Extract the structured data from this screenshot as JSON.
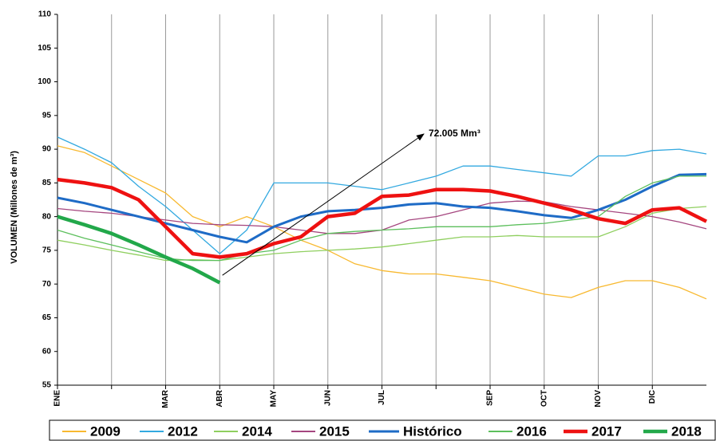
{
  "chart_data": {
    "type": "line",
    "y_label": "VOLUMEN (Millones de m³)",
    "annotation": "72.005 Mm³",
    "x": [
      0,
      0.5,
      1,
      1.5,
      2,
      2.5,
      3,
      3.5,
      4,
      4.5,
      5,
      5.5,
      6,
      6.5,
      7,
      7.5,
      8,
      8.5,
      9,
      9.5,
      10,
      10.5,
      11,
      11.5,
      12
    ],
    "xlim": [
      0,
      12
    ],
    "xticks": [
      {
        "value": 0,
        "label": "ENE"
      },
      {
        "value": 1,
        "label": null
      },
      {
        "value": 2,
        "label": "MAR"
      },
      {
        "value": 3,
        "label": "ABR"
      },
      {
        "value": 4,
        "label": "MAY"
      },
      {
        "value": 5,
        "label": "JUN"
      },
      {
        "value": 6,
        "label": "JUL"
      },
      {
        "value": 7,
        "label": null
      },
      {
        "value": 8,
        "label": "SEP"
      },
      {
        "value": 9,
        "label": "OCT"
      },
      {
        "value": 10,
        "label": "NOV"
      },
      {
        "value": 11,
        "label": "DIC"
      }
    ],
    "ylim": [
      55,
      110
    ],
    "yticks": [
      55,
      60,
      65,
      70,
      75,
      80,
      85,
      90,
      95,
      100,
      105,
      110
    ],
    "grid": "x",
    "series": [
      {
        "name": "2009",
        "color": "#f8b930",
        "line_width": 1.3,
        "values": [
          90.5,
          89.5,
          87.5,
          85.5,
          83.5,
          80,
          78.5,
          80,
          78.5,
          76.5,
          75,
          73,
          72,
          71.5,
          71.5,
          71,
          70.5,
          69.5,
          68.5,
          68,
          69.5,
          70.5,
          70.5,
          69.5,
          67.8
        ]
      },
      {
        "name": "2012",
        "color": "#33a9e0",
        "line_width": 1.3,
        "values": [
          91.8,
          90,
          88,
          84.5,
          81.5,
          78,
          74.5,
          78,
          85,
          85,
          85,
          84.5,
          84,
          85,
          86,
          87.5,
          87.5,
          87,
          86.5,
          86,
          89,
          89,
          89.8,
          90,
          89.3
        ]
      },
      {
        "name": "2014",
        "color": "#8fcf5f",
        "line_width": 1.3,
        "values": [
          76.5,
          75.8,
          75,
          74.3,
          73.5,
          73.6,
          73.5,
          74,
          74.5,
          74.8,
          75,
          75.2,
          75.5,
          76,
          76.5,
          77,
          77,
          77.2,
          77,
          77,
          77,
          78.5,
          80.5,
          81.2,
          81.5
        ]
      },
      {
        "name": "2015",
        "color": "#a5467f",
        "line_width": 1.3,
        "values": [
          81.2,
          80.8,
          80.5,
          80,
          79.5,
          79,
          78.8,
          78.7,
          78.5,
          78,
          77.5,
          77.5,
          78,
          79.5,
          80,
          81,
          82,
          82.3,
          82.2,
          81.5,
          81,
          80.5,
          80,
          79.2,
          78.2
        ]
      },
      {
        "name": "Histórico",
        "color": "#1e6bc6",
        "line_width": 3,
        "values": [
          82.8,
          82,
          81,
          80,
          79,
          78,
          77,
          76.2,
          78.5,
          80,
          80.8,
          81,
          81.3,
          81.8,
          82,
          81.5,
          81.3,
          80.8,
          80.2,
          79.8,
          81,
          82.5,
          84.5,
          86.2,
          86.3
        ]
      },
      {
        "name": "2016",
        "color": "#5cbf5c",
        "line_width": 1.3,
        "values": [
          78,
          76.8,
          75.8,
          74.8,
          73.8,
          73.5,
          73.5,
          74.5,
          75,
          76.5,
          77.5,
          77.8,
          78,
          78.2,
          78.5,
          78.5,
          78.5,
          78.8,
          79,
          79.5,
          80,
          83,
          85,
          86,
          86
        ]
      },
      {
        "name": "2017",
        "color": "#ee1111",
        "line_width": 4.5,
        "values": [
          85.5,
          85,
          84.3,
          82.5,
          78.5,
          74.5,
          74,
          74.5,
          76,
          77,
          80,
          80.5,
          83,
          83.2,
          84,
          84,
          83.8,
          83,
          82,
          81,
          79.7,
          79,
          81,
          81.3,
          79.3
        ]
      },
      {
        "name": "2018",
        "color": "#22a84a",
        "line_width": 4.5,
        "values": [
          80,
          78.8,
          77.5,
          75.8,
          74,
          72.3,
          70.2,
          null,
          null,
          null,
          null,
          null,
          null,
          null,
          null,
          null,
          null,
          null,
          null,
          null,
          null,
          null,
          null,
          null,
          null
        ]
      }
    ]
  }
}
